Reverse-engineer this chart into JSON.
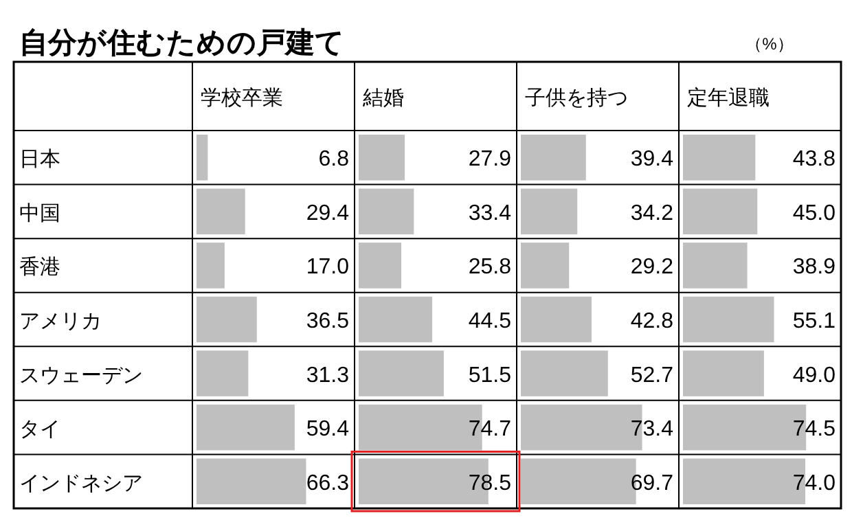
{
  "chart_data": [
    {
      "type": "bar",
      "orientation": "horizontal",
      "title": "学校卒業",
      "annotations": [
        "自分が住むための戸建て",
        "（%）"
      ],
      "categories": [
        "日本",
        "中国",
        "香港",
        "アメリカ",
        "スウェーデン",
        "タイ",
        "インドネシア"
      ],
      "values": [
        6.8,
        29.4,
        17.0,
        36.5,
        31.3,
        59.4,
        66.3
      ],
      "value_labels": [
        "6.8",
        "29.4",
        "17.0",
        "36.5",
        "31.3",
        "59.4",
        "66.3"
      ],
      "color": "#bfbfbf",
      "tick_labels": "y"
    },
    {
      "type": "bar",
      "orientation": "horizontal",
      "title": "結婚",
      "categories": [
        null,
        null,
        null,
        null,
        null,
        null,
        null
      ],
      "values": [
        27.9,
        33.4,
        25.8,
        44.5,
        51.5,
        74.7,
        78.5
      ],
      "value_labels": [
        "27.9",
        "33.4",
        "25.8",
        "44.5",
        "51.5",
        "74.7",
        "78.5"
      ],
      "color": "#bfbfbf",
      "tick_labels": false
    },
    {
      "type": "bar",
      "orientation": "horizontal",
      "title": "子供を持つ",
      "categories": [
        null,
        null,
        null,
        null,
        null,
        null,
        null
      ],
      "values": [
        39.4,
        34.2,
        29.2,
        42.8,
        52.7,
        73.4,
        69.7
      ],
      "value_labels": [
        "39.4",
        "34.2",
        "29.2",
        "42.8",
        "52.7",
        "73.4",
        "69.7"
      ],
      "color": "#bfbfbf",
      "tick_labels": false
    },
    {
      "type": "bar",
      "orientation": "horizontal",
      "title": "定年退職",
      "categories": [
        null,
        null,
        null,
        null,
        null,
        null,
        null
      ],
      "values": [
        43.8,
        45.0,
        38.9,
        55.1,
        49.0,
        74.5,
        74.0
      ],
      "value_labels": [
        "43.8",
        "45.0",
        "38.9",
        "55.1",
        "49.0",
        "74.5",
        "74.0"
      ],
      "color": "#bfbfbf",
      "tick_labels": false
    }
  ]
}
